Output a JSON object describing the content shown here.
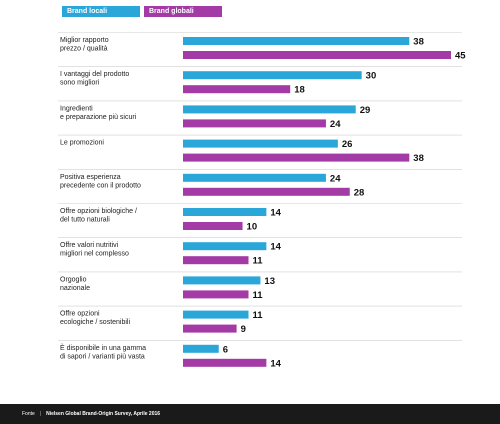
{
  "legend": {
    "local": "Brand locali",
    "global": "Brand globali"
  },
  "footer": {
    "label": "Fonte",
    "source": "Nielsen Global Brand-Origin Survey, Aprile 2016"
  },
  "colors": {
    "local": "#2aa7d8",
    "global": "#a43aa5",
    "text": "#222222",
    "divider": "#cfcfcf"
  },
  "chart_data": {
    "type": "bar",
    "orientation": "horizontal",
    "categories": [
      [
        "Miglior rapporto",
        "prezzo / qualità"
      ],
      [
        "I vantaggi del prodotto",
        "sono migliori"
      ],
      [
        "Ingredienti",
        "e preparazione più sicuri"
      ],
      [
        "Le promozioni"
      ],
      [
        "Positiva esperienza",
        "precedente con il prodotto"
      ],
      [
        "Offre opzioni biologiche /",
        "del tutto naturali"
      ],
      [
        "Offre valori nutritivi",
        "migliori nel complesso"
      ],
      [
        "Orgoglio",
        "nazionale"
      ],
      [
        "Offre opzioni",
        "ecologiche / sostenibili"
      ],
      [
        "È disponibile in una gamma",
        "di sapori / varianti più vasta"
      ]
    ],
    "series": [
      {
        "name": "Brand locali",
        "values": [
          38,
          30,
          29,
          26,
          24,
          14,
          14,
          13,
          11,
          6
        ]
      },
      {
        "name": "Brand globali",
        "values": [
          45,
          18,
          24,
          38,
          28,
          10,
          11,
          11,
          9,
          14
        ]
      }
    ],
    "xlim": [
      0,
      45
    ],
    "grid": false,
    "legend_position": "top-left"
  }
}
